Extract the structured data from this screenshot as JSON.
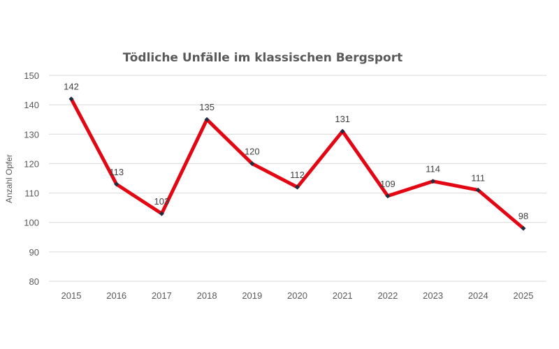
{
  "chart_data": {
    "type": "line",
    "title": "Tödliche Unfälle im klassischen Bergsport",
    "xlabel": "",
    "ylabel": "Anzahl Opfer",
    "categories": [
      "2015",
      "2016",
      "2017",
      "2018",
      "2019",
      "2020",
      "2021",
      "2022",
      "2023",
      "2024",
      "2025"
    ],
    "values": [
      142,
      113,
      103,
      135,
      120,
      112,
      131,
      109,
      114,
      111,
      98
    ],
    "ylim": [
      80,
      150
    ],
    "yticks": [
      80,
      90,
      100,
      110,
      120,
      130,
      140,
      150
    ],
    "grid": true,
    "legend": "none",
    "data_labels": true,
    "line_color": "#E30613",
    "marker_color": "#1F2D3D"
  }
}
